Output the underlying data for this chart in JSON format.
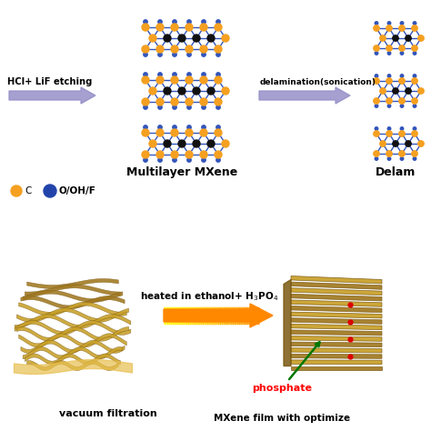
{
  "bg_color": "#ffffff",
  "arrow1_label": "HCl+ LiF etching",
  "arrow2_label": "delamination(sonication)",
  "arrow3_label": "heated in ethanol+ H₃PO₄",
  "label_multilayer": "Multilayer MXene",
  "label_delaminated": "Delam",
  "label_vacuum": "vacuum filtration",
  "label_mxene_film": "MXene film with optimize",
  "label_phosphate": "phosphate",
  "legend_ooh": "O/OH/F",
  "arrow_purple_color": "#9590C8",
  "node_orange_color": "#F5A020",
  "node_blue_color": "#2244AA",
  "node_dark_color": "#111111",
  "bond_blue_color": "#3355BB",
  "phosphate_color": "#ff0000",
  "green_arrow_color": "#007700",
  "film_gold": "#C8A028",
  "film_dark": "#7A5810",
  "film_mid": "#A07820"
}
